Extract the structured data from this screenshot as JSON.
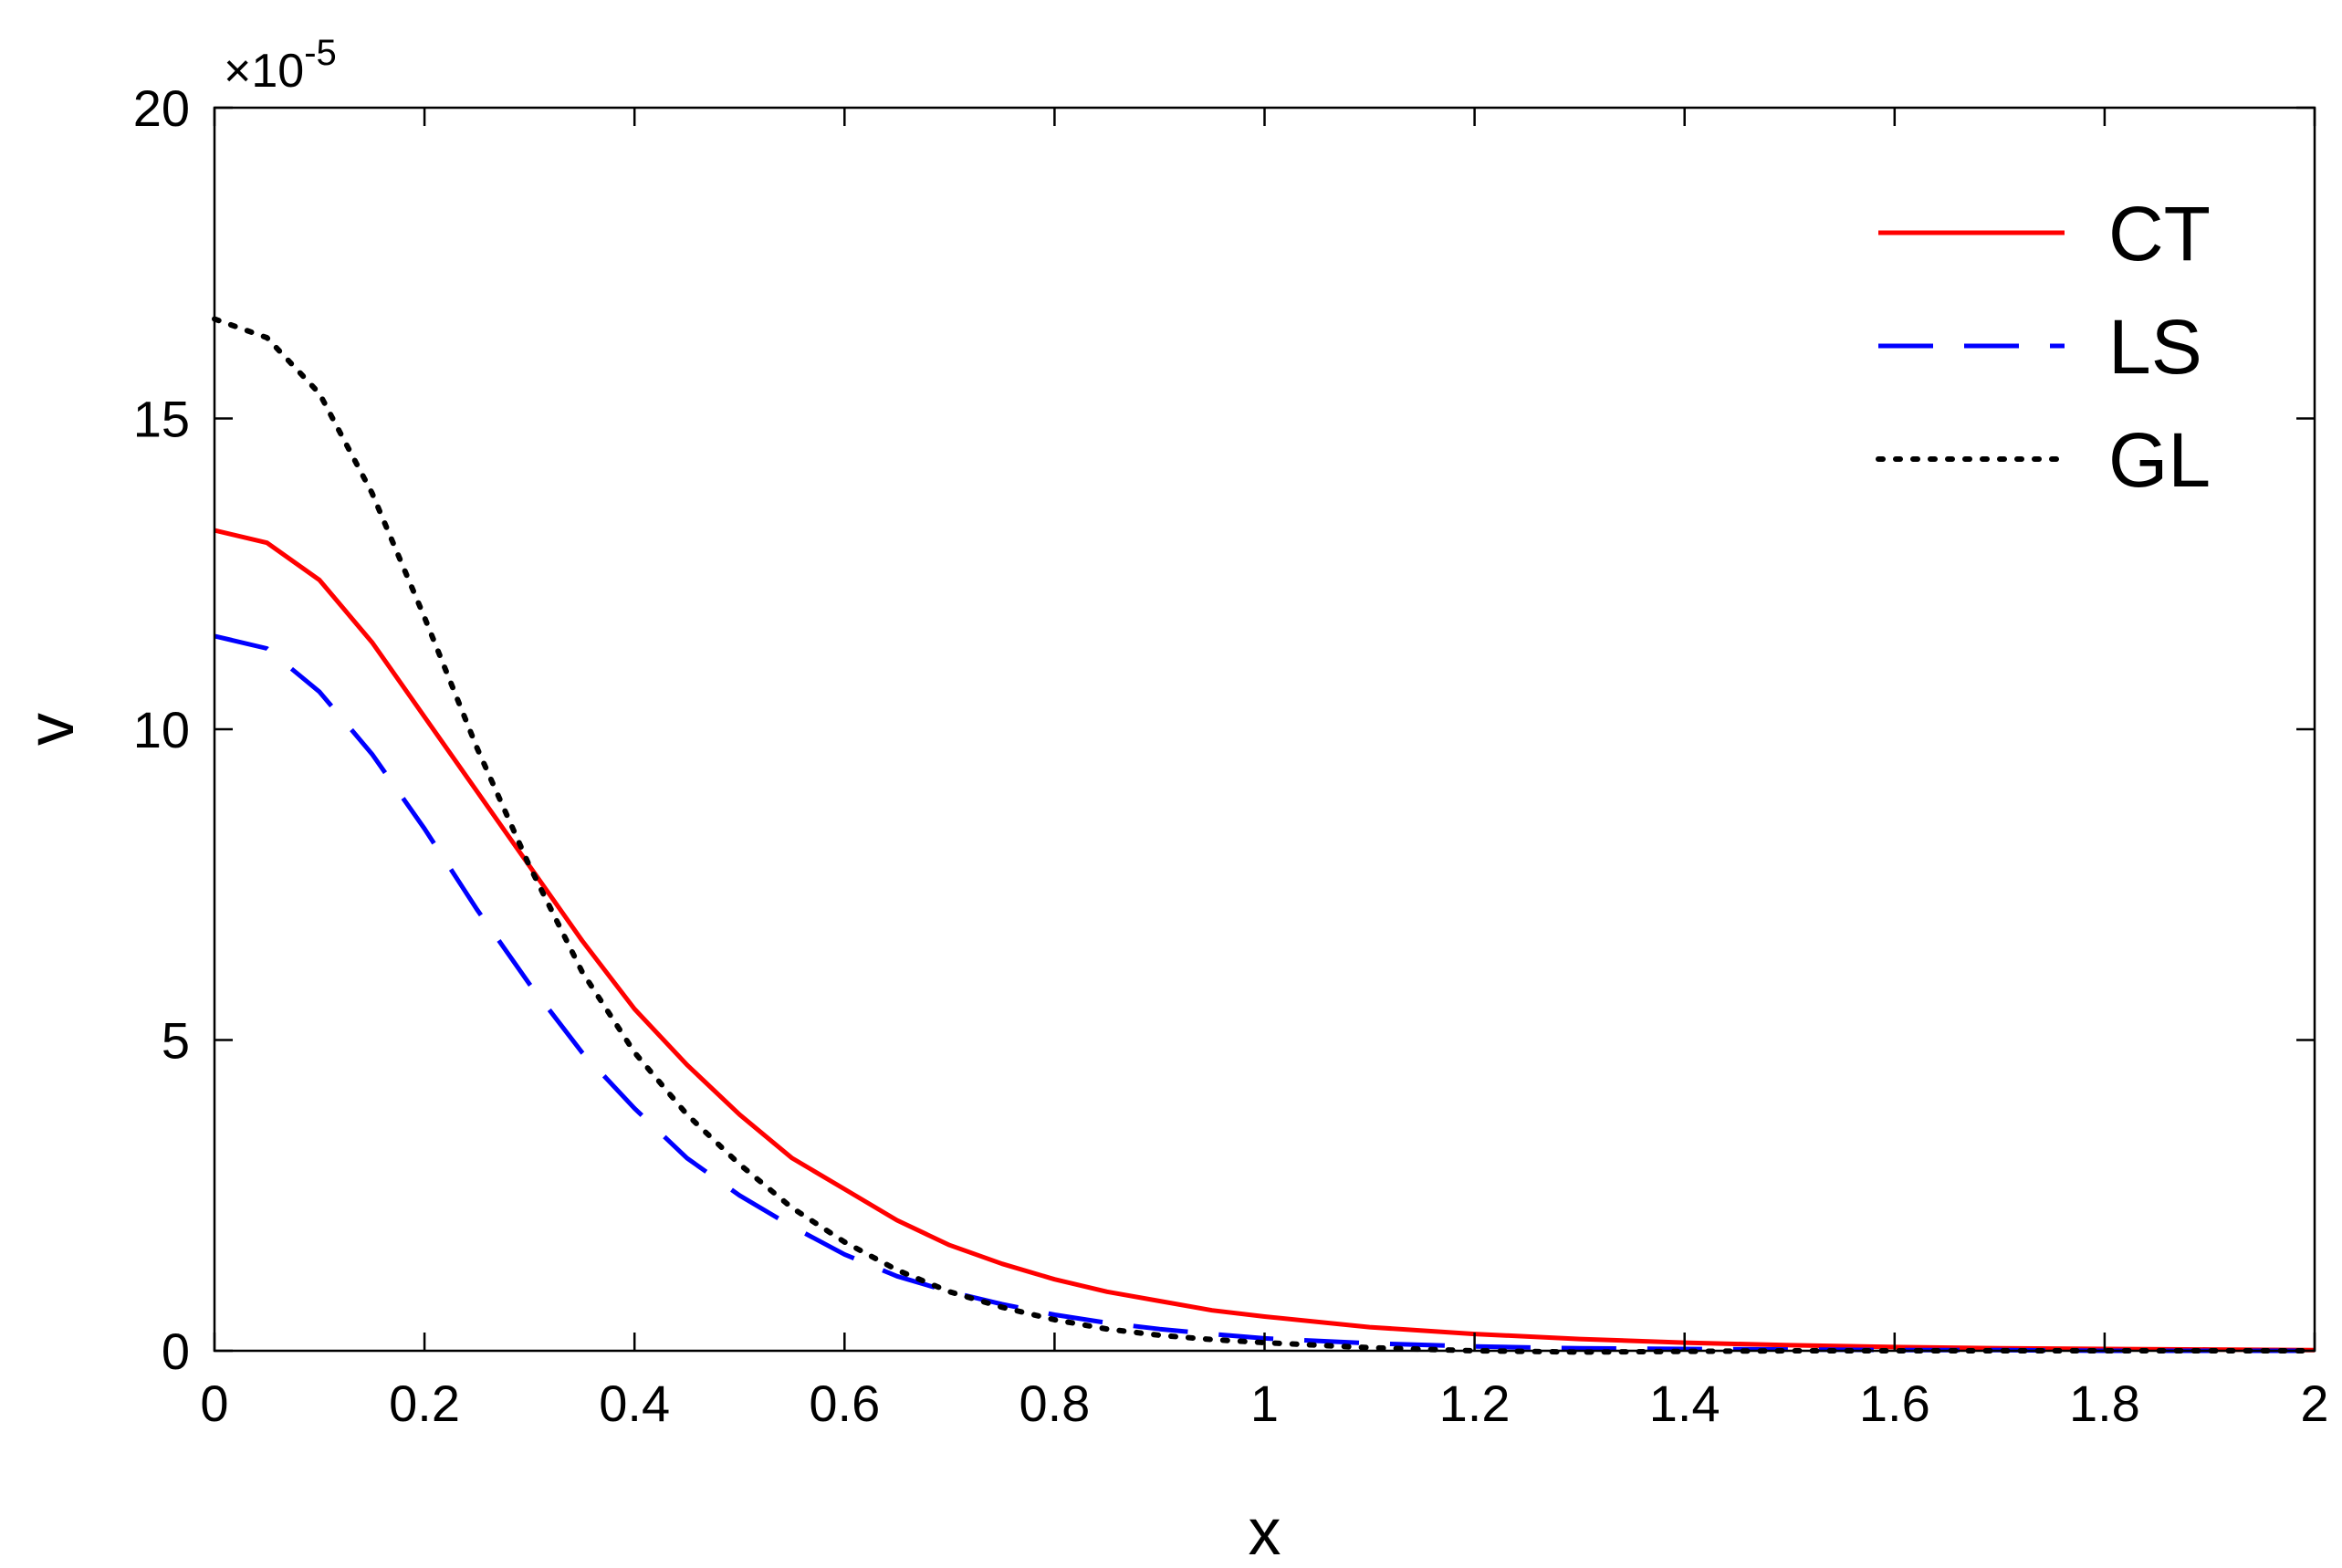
{
  "chart_data": {
    "type": "line",
    "xlabel": "x",
    "ylabel": "v",
    "y_multiplier": {
      "prefix": "×10",
      "exponent": "-5"
    },
    "xlim": [
      0,
      2
    ],
    "ylim": [
      0,
      20
    ],
    "x_ticks": [
      "0",
      "0.2",
      "0.4",
      "0.6",
      "0.8",
      "1",
      "1.2",
      "1.4",
      "1.6",
      "1.8",
      "2"
    ],
    "y_ticks": [
      "0",
      "5",
      "10",
      "15",
      "20"
    ],
    "grid": false,
    "legend_position": "top-right",
    "x": [
      0,
      0.05,
      0.1,
      0.15,
      0.2,
      0.25,
      0.3,
      0.35,
      0.4,
      0.45,
      0.5,
      0.55,
      0.6,
      0.65,
      0.7,
      0.75,
      0.8,
      0.85,
      0.9,
      0.95,
      1.0,
      1.1,
      1.2,
      1.3,
      1.4,
      1.5,
      1.6,
      1.7,
      1.8,
      1.9,
      2.0
    ],
    "series": [
      {
        "name": "CT",
        "color": "#ff0000",
        "dash": "solid",
        "values": [
          13.2,
          13.0,
          12.4,
          11.4,
          10.2,
          9.0,
          7.8,
          6.6,
          5.5,
          4.6,
          3.8,
          3.1,
          2.6,
          2.1,
          1.7,
          1.4,
          1.15,
          0.95,
          0.8,
          0.65,
          0.55,
          0.38,
          0.27,
          0.19,
          0.13,
          0.09,
          0.06,
          0.04,
          0.03,
          0.02,
          0.01
        ]
      },
      {
        "name": "LS",
        "color": "#0000ff",
        "dash": "dashed",
        "values": [
          11.5,
          11.3,
          10.6,
          9.6,
          8.4,
          7.1,
          5.9,
          4.8,
          3.9,
          3.1,
          2.5,
          2.0,
          1.55,
          1.2,
          0.95,
          0.75,
          0.58,
          0.45,
          0.35,
          0.27,
          0.2,
          0.12,
          0.07,
          0.04,
          0.03,
          0.02,
          0.01,
          0.01,
          0.0,
          0.0,
          0.0
        ]
      },
      {
        "name": "GL",
        "color": "#000000",
        "dash": "dotted",
        "values": [
          16.6,
          16.3,
          15.4,
          13.8,
          11.8,
          9.7,
          7.8,
          6.1,
          4.8,
          3.8,
          3.0,
          2.3,
          1.75,
          1.3,
          0.95,
          0.7,
          0.5,
          0.35,
          0.25,
          0.18,
          0.13,
          0.05,
          0.0,
          -0.02,
          -0.01,
          0.0,
          0.0,
          0.0,
          0.0,
          0.0,
          0.0
        ]
      }
    ]
  }
}
